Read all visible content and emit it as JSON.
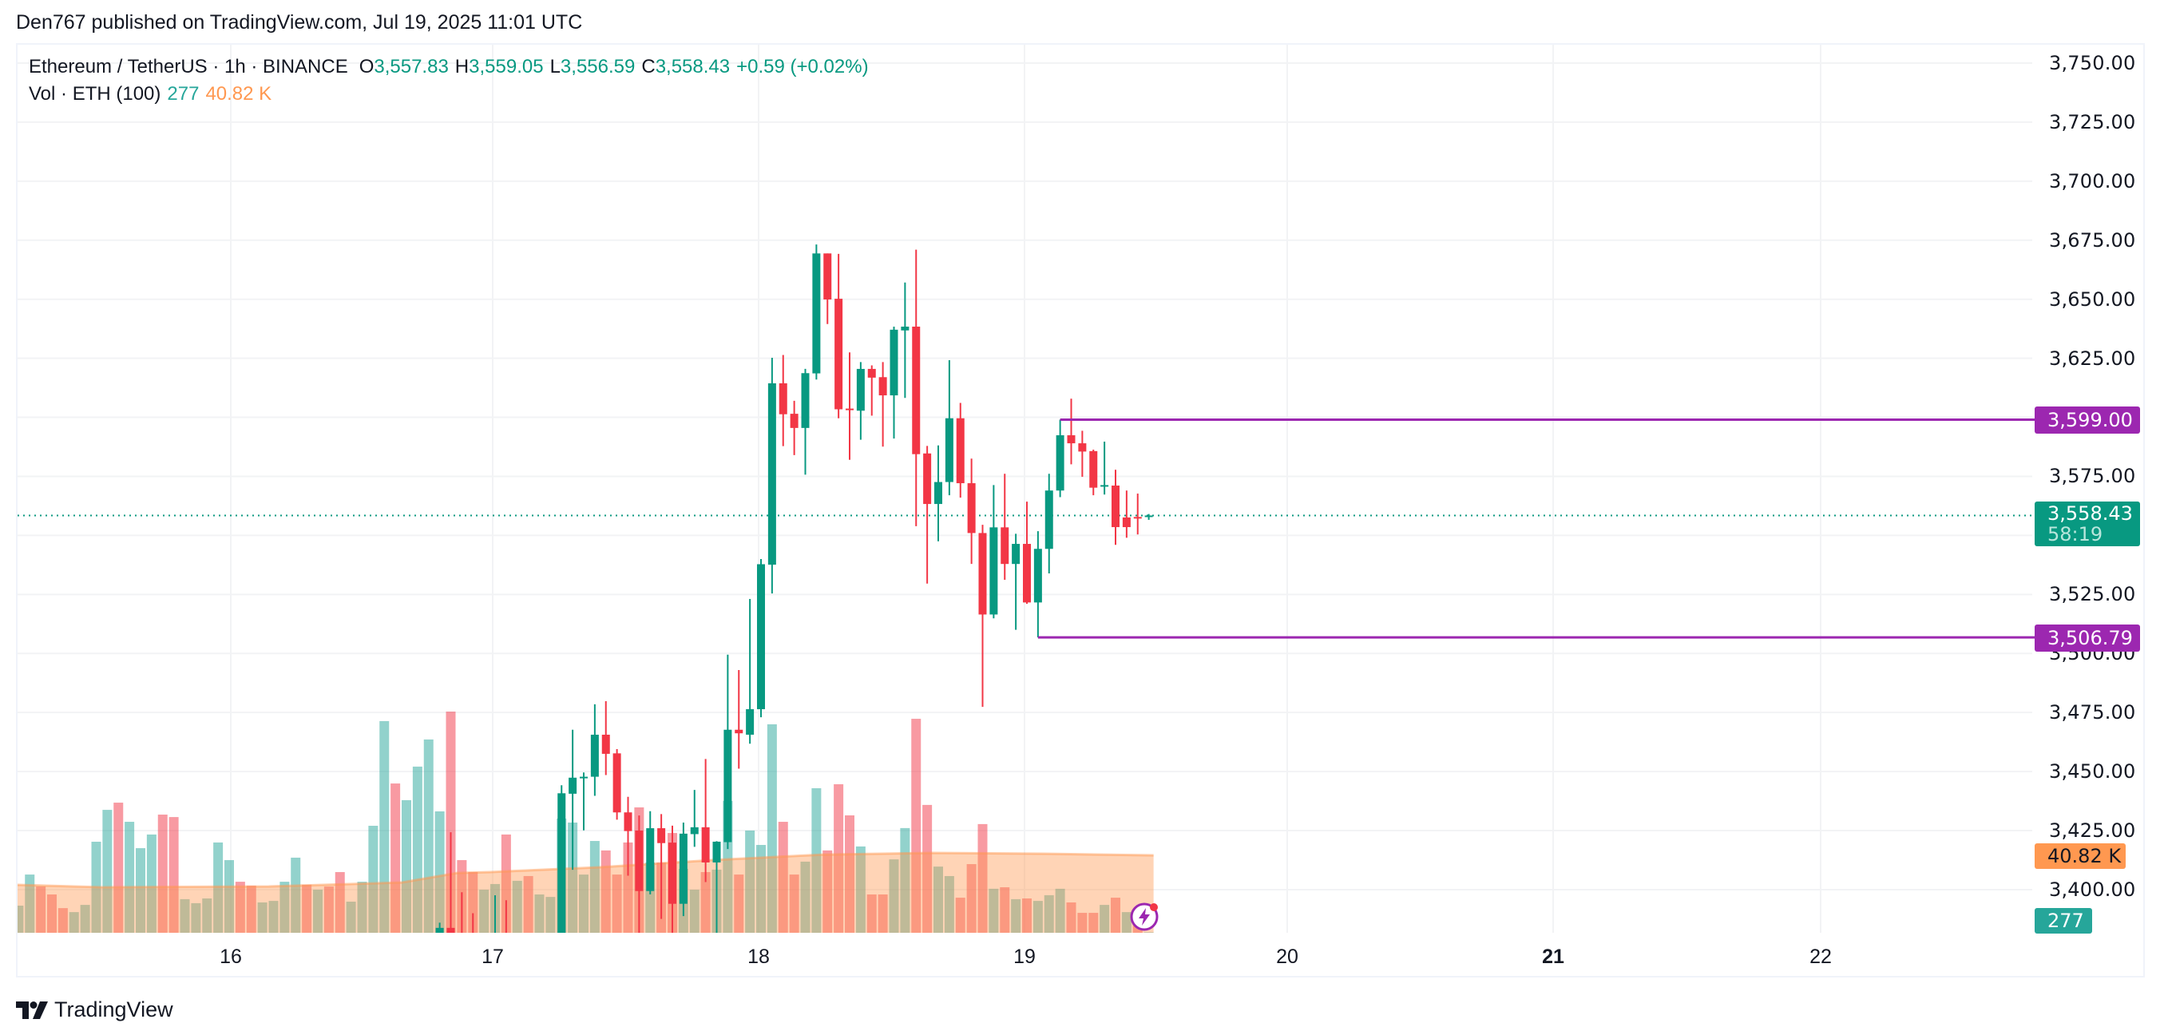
{
  "publisher_line": "Den767 published on TradingView.com, Jul 19, 2025 11:01 UTC",
  "legend": {
    "symbol": "Ethereum / TetherUS · 1h · BINANCE",
    "o_label": "O",
    "o_value": "3,557.83",
    "h_label": "H",
    "h_value": "3,559.05",
    "l_label": "L",
    "l_value": "3,556.59",
    "c_label": "C",
    "c_value": "3,558.43",
    "change": "+0.59 (+0.02%)",
    "vol_title": "Vol · ETH (100)",
    "vol_value": "277",
    "vol_ma_value": "40.82 K"
  },
  "price_axis": {
    "ticks": [
      "3,750.00",
      "3,725.00",
      "3,700.00",
      "3,675.00",
      "3,650.00",
      "3,625.00",
      "3,575.00",
      "3,525.00",
      "3,500.00",
      "3,475.00",
      "3,450.00",
      "3,425.00",
      "3,400.00"
    ],
    "tick_values": [
      3750,
      3725,
      3700,
      3675,
      3650,
      3625,
      3575,
      3525,
      3500,
      3475,
      3450,
      3425,
      3400
    ]
  },
  "time_axis": {
    "labels": [
      "16",
      "17",
      "18",
      "19",
      "20",
      "21",
      "22"
    ],
    "bold_index": 5
  },
  "tags": {
    "resistance": "3,599.00",
    "support": "3,506.79",
    "last_price": "3,558.43",
    "countdown": "58:19",
    "vol_ma": "40.82 K",
    "vol": "277"
  },
  "colors": {
    "up": "#089981",
    "down": "#f23645",
    "vol_up": "#26a69a",
    "vol_down": "#f23645",
    "vol_ma": "#ff9850",
    "level_line": "#9c27b0",
    "grid": "#f2f3f5"
  },
  "logo_text": "TradingView",
  "chart_data": {
    "type": "candlestick",
    "title": "Ethereum / TetherUS · 1h · BINANCE",
    "interval": "1h",
    "xlabel": "",
    "ylabel": "",
    "ylim": [
      3380,
      3760
    ],
    "x_ticks": [
      "16",
      "17",
      "18",
      "19",
      "20",
      "21",
      "22"
    ],
    "y_ticks": [
      3400,
      3425,
      3450,
      3475,
      3500,
      3525,
      3575,
      3625,
      3650,
      3675,
      3700,
      3725,
      3750
    ],
    "grid": true,
    "candle_start_hour_offset_from_jul17": -5,
    "candles_ohlc": [
      [
        3381.6,
        3386,
        3375,
        3383.8
      ],
      [
        3383.8,
        3424.3,
        3375,
        3381.3
      ],
      [
        3380,
        3398.9,
        3370,
        3376
      ],
      [
        3376,
        3390,
        3368,
        3372
      ],
      [
        3372,
        3378,
        3365,
        3375
      ],
      [
        3374,
        3397.6,
        3368,
        3379
      ],
      [
        3379,
        3395.5,
        3368,
        3372
      ],
      [
        3372,
        3378,
        3366,
        3375
      ],
      [
        3375,
        3379,
        3366,
        3370
      ],
      [
        3370,
        3378,
        3365,
        3376
      ],
      [
        3376,
        3380,
        3368,
        3378
      ],
      [
        3378,
        3444.2,
        3375,
        3440.8
      ],
      [
        3440.6,
        3467.7,
        3408.4,
        3447.4
      ],
      [
        3447.4,
        3449.6,
        3425.1,
        3447.8
      ],
      [
        3447.8,
        3478.5,
        3439.7,
        3465.6
      ],
      [
        3465.6,
        3479.8,
        3448.5,
        3457.5
      ],
      [
        3457.7,
        3459.5,
        3429.6,
        3432.7
      ],
      [
        3432.7,
        3439.3,
        3405.9,
        3424.8
      ],
      [
        3425,
        3431.4,
        3381,
        3399.4
      ],
      [
        3399.4,
        3433.2,
        3398,
        3426
      ],
      [
        3426,
        3432,
        3387.6,
        3419.7
      ],
      [
        3419.9,
        3427.1,
        3381,
        3394
      ],
      [
        3394,
        3428.4,
        3388.8,
        3423.7
      ],
      [
        3423.5,
        3442.2,
        3418.1,
        3426.4
      ],
      [
        3426.4,
        3455.3,
        3403.2,
        3411.5
      ],
      [
        3411.5,
        3420.5,
        3378,
        3420.3
      ],
      [
        3420.1,
        3499.5,
        3417.2,
        3467.7
      ],
      [
        3467.7,
        3493,
        3451.2,
        3466.2
      ],
      [
        3465.6,
        3523.1,
        3461.8,
        3476.4
      ],
      [
        3476.4,
        3540,
        3473,
        3537.8
      ],
      [
        3537.6,
        3625.2,
        3525.4,
        3614.4
      ],
      [
        3614.4,
        3626.4,
        3587.8,
        3601.3
      ],
      [
        3601.5,
        3607,
        3584,
        3595.5
      ],
      [
        3595.5,
        3620.5,
        3575.7,
        3618.7
      ],
      [
        3618.6,
        3673.2,
        3616,
        3669.4
      ],
      [
        3669.4,
        3669.4,
        3639.5,
        3649.9
      ],
      [
        3650.2,
        3669.2,
        3599.6,
        3603.4
      ],
      [
        3603.7,
        3627.5,
        3582,
        3603.5
      ],
      [
        3602.8,
        3623.4,
        3590.5,
        3620.5
      ],
      [
        3620.5,
        3622,
        3600.7,
        3616.8
      ],
      [
        3617,
        3623.4,
        3587.6,
        3609.3
      ],
      [
        3609.3,
        3638.4,
        3591,
        3637.1
      ],
      [
        3636.8,
        3657.1,
        3608.2,
        3638.4
      ],
      [
        3638.4,
        3671,
        3553.9,
        3584.4
      ],
      [
        3584.7,
        3587.9,
        3529.6,
        3563.3
      ],
      [
        3563.3,
        3588.1,
        3547.5,
        3572.6
      ],
      [
        3572.6,
        3624.2,
        3567,
        3599.6
      ],
      [
        3599.6,
        3606.1,
        3566,
        3572.1
      ],
      [
        3572.1,
        3582.5,
        3537.9,
        3551
      ],
      [
        3551,
        3554.5,
        3477.4,
        3516.5
      ],
      [
        3516.5,
        3571.3,
        3514.9,
        3553.4
      ],
      [
        3553.4,
        3576.1,
        3531.2,
        3537.9
      ],
      [
        3537.9,
        3550.7,
        3510,
        3546.4
      ],
      [
        3546.4,
        3564.3,
        3521,
        3521.6
      ],
      [
        3521.6,
        3551.8,
        3506.79,
        3544.3
      ],
      [
        3544.3,
        3576.1,
        3533.9,
        3569
      ],
      [
        3569,
        3599,
        3566.2,
        3592.4
      ],
      [
        3592.4,
        3607.9,
        3580.1,
        3589
      ],
      [
        3589,
        3594.3,
        3574.8,
        3585.5
      ],
      [
        3585.7,
        3586.3,
        3567,
        3570.2
      ],
      [
        3571,
        3589.7,
        3567.3,
        3571.3
      ],
      [
        3571.1,
        3577.8,
        3546,
        3553.5
      ],
      [
        3557.6,
        3569,
        3549,
        3553.5
      ],
      [
        3557.8,
        3567.7,
        3550.4,
        3557.4
      ],
      [
        3557.83,
        3559.05,
        3556.59,
        3558.43
      ]
    ],
    "volume_start_hour_offset_from_jul17": -43,
    "volume_eth": [
      [
        14300,
        "u"
      ],
      [
        30700,
        "u"
      ],
      [
        24400,
        "d"
      ],
      [
        20200,
        "d"
      ],
      [
        13000,
        "d"
      ],
      [
        10900,
        "u"
      ],
      [
        14700,
        "u"
      ],
      [
        48000,
        "u"
      ],
      [
        64800,
        "u"
      ],
      [
        68600,
        "d"
      ],
      [
        58500,
        "u"
      ],
      [
        44600,
        "u"
      ],
      [
        51800,
        "u"
      ],
      [
        62300,
        "d"
      ],
      [
        61000,
        "d"
      ],
      [
        17700,
        "u"
      ],
      [
        15600,
        "u"
      ],
      [
        18100,
        "u"
      ],
      [
        47600,
        "u"
      ],
      [
        38300,
        "u"
      ],
      [
        26900,
        "d"
      ],
      [
        24800,
        "d"
      ],
      [
        16000,
        "u"
      ],
      [
        16800,
        "u"
      ],
      [
        26900,
        "u"
      ],
      [
        39600,
        "u"
      ],
      [
        25300,
        "d"
      ],
      [
        22700,
        "u"
      ],
      [
        24400,
        "d"
      ],
      [
        32000,
        "d"
      ],
      [
        16400,
        "u"
      ],
      [
        26900,
        "u"
      ],
      [
        56400,
        "u"
      ],
      [
        111600,
        "u"
      ],
      [
        78700,
        "d"
      ],
      [
        69900,
        "u"
      ],
      [
        87600,
        "u"
      ],
      [
        101900,
        "u"
      ],
      [
        64000,
        "u"
      ],
      [
        116600,
        "d"
      ],
      [
        38300,
        "d"
      ],
      [
        32000,
        "d"
      ],
      [
        22700,
        "u"
      ],
      [
        25700,
        "u"
      ],
      [
        51800,
        "d"
      ],
      [
        27400,
        "u"
      ],
      [
        29900,
        "d"
      ],
      [
        20200,
        "u"
      ],
      [
        18900,
        "u"
      ],
      [
        60200,
        "u"
      ],
      [
        58100,
        "u"
      ],
      [
        30700,
        "u"
      ],
      [
        48400,
        "u"
      ],
      [
        43400,
        "d"
      ],
      [
        30700,
        "d"
      ],
      [
        47600,
        "d"
      ],
      [
        66100,
        "d"
      ],
      [
        37000,
        "u"
      ],
      [
        37000,
        "d"
      ],
      [
        52600,
        "d"
      ],
      [
        33700,
        "u"
      ],
      [
        22700,
        "u"
      ],
      [
        32000,
        "d"
      ],
      [
        33300,
        "u"
      ],
      [
        69500,
        "u"
      ],
      [
        30700,
        "d"
      ],
      [
        53900,
        "u"
      ],
      [
        46300,
        "u"
      ],
      [
        109900,
        "u"
      ],
      [
        58500,
        "d"
      ],
      [
        30700,
        "d"
      ],
      [
        37500,
        "u"
      ],
      [
        76200,
        "u"
      ],
      [
        43400,
        "d"
      ],
      [
        78300,
        "d"
      ],
      [
        61900,
        "d"
      ],
      [
        45500,
        "u"
      ],
      [
        20200,
        "d"
      ],
      [
        20200,
        "d"
      ],
      [
        38700,
        "u"
      ],
      [
        55200,
        "u"
      ],
      [
        112800,
        "d"
      ],
      [
        67400,
        "d"
      ],
      [
        34900,
        "u"
      ],
      [
        29900,
        "u"
      ],
      [
        18500,
        "d"
      ],
      [
        36200,
        "d"
      ],
      [
        57300,
        "d"
      ],
      [
        23200,
        "u"
      ],
      [
        24000,
        "d"
      ],
      [
        17700,
        "u"
      ],
      [
        18100,
        "d"
      ],
      [
        16800,
        "u"
      ],
      [
        19800,
        "u"
      ],
      [
        23200,
        "u"
      ],
      [
        16000,
        "d"
      ],
      [
        10500,
        "d"
      ],
      [
        10500,
        "d"
      ],
      [
        14700,
        "u"
      ],
      [
        18500,
        "d"
      ],
      [
        10900,
        "u"
      ],
      [
        9300,
        "d"
      ],
      [
        277,
        "u"
      ]
    ],
    "volume_ma_100": {
      "points_hour_offset": [
        -43,
        -35,
        -20,
        -8,
        -3,
        0,
        10,
        20,
        30,
        40,
        50,
        59
      ],
      "values_eth": [
        25300,
        24000,
        24400,
        26500,
        31500,
        32000,
        34600,
        38300,
        41200,
        42100,
        41700,
        40820
      ]
    },
    "horizontal_levels": [
      {
        "price": 3599.0,
        "from_hour_offset": 51
      },
      {
        "price": 3506.79,
        "from_hour_offset": 49
      }
    ],
    "last_price": 3558.43
  }
}
